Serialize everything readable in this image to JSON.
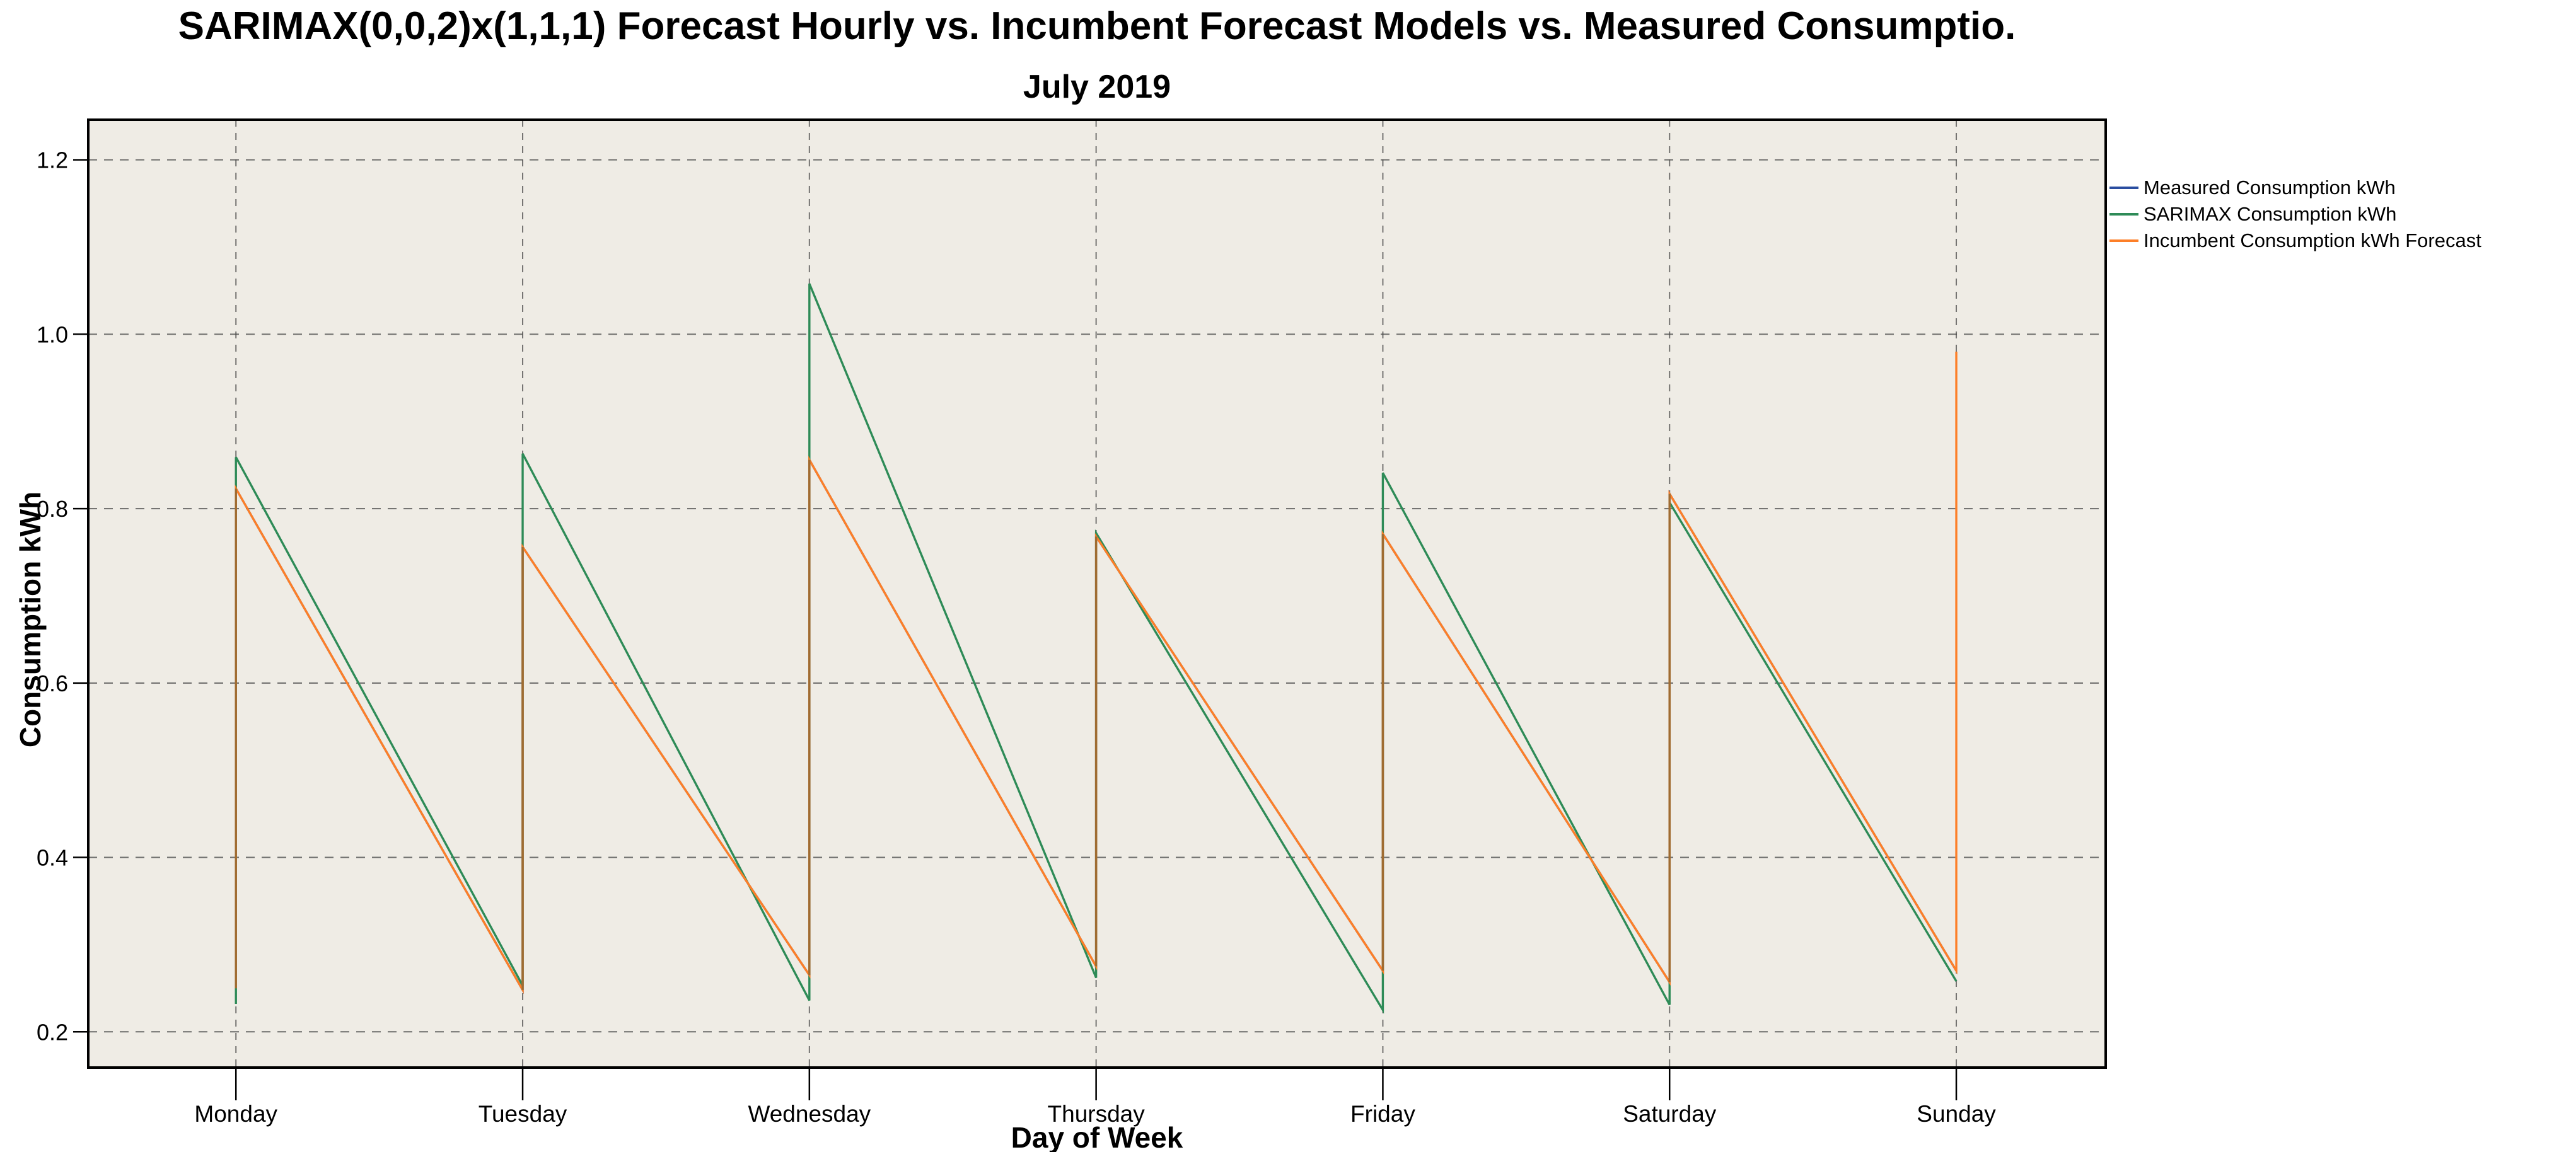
{
  "chart": {
    "title": "SARIMAX(0,0,2)x(1,1,1) Forecast Hourly vs. Incumbent Forecast Models vs. Measured Consumptio.",
    "subtitle": "July 2019",
    "xlabel": "Day of Week",
    "ylabel": "Consumption kWh"
  },
  "chart_data": {
    "type": "line",
    "categories": [
      "Monday",
      "Tuesday",
      "Wednesday",
      "Thursday",
      "Friday",
      "Saturday",
      "Sunday"
    ],
    "y_tick_labels": [
      "0.2",
      "0.4",
      "0.6",
      "0.8",
      "1.0",
      "1.2"
    ],
    "y_ticks": [
      0.2,
      0.4,
      0.6,
      0.8,
      1.0,
      1.2
    ],
    "ylim": [
      0.159,
      1.246
    ],
    "xlim": [
      -0.515,
      6.521
    ],
    "grid": "dashed-both-axes",
    "legend_position": "outside-right-top",
    "series": [
      {
        "name": "Measured Consumption kWh",
        "color": "#2a4da0",
        "points": [
          [
            0,
            0.25
          ],
          [
            0,
            0.823
          ],
          [
            1,
            0.248
          ],
          [
            1,
            0.756
          ],
          [
            2,
            0.265
          ],
          [
            2,
            0.856
          ],
          [
            3,
            0.275
          ],
          [
            3,
            0.768
          ],
          [
            4,
            0.27
          ],
          [
            4,
            0.771
          ],
          [
            5,
            0.257
          ],
          [
            5,
            0.817
          ],
          [
            6,
            0.27
          ]
        ]
      },
      {
        "name": "SARIMAX Consumption kWh",
        "color": "#2e8b57",
        "points": [
          [
            0,
            0.232
          ],
          [
            0,
            0.859
          ],
          [
            1,
            0.253
          ],
          [
            1,
            0.863
          ],
          [
            2,
            0.236
          ],
          [
            2,
            1.058
          ],
          [
            3,
            0.262
          ],
          [
            3,
            0.772
          ],
          [
            4,
            0.225
          ],
          [
            4,
            0.841
          ],
          [
            5,
            0.231
          ],
          [
            5,
            0.807
          ],
          [
            6,
            0.258
          ]
        ]
      },
      {
        "name": "Incumbent Consumption kWh Forecast",
        "color": "#fd7f28",
        "points": [
          [
            0,
            0.25
          ],
          [
            0,
            0.823
          ],
          [
            1,
            0.248
          ],
          [
            1,
            0.756
          ],
          [
            2,
            0.265
          ],
          [
            2,
            0.856
          ],
          [
            3,
            0.275
          ],
          [
            3,
            0.768
          ],
          [
            4,
            0.27
          ],
          [
            4,
            0.771
          ],
          [
            5,
            0.257
          ],
          [
            5,
            0.817
          ],
          [
            6,
            0.27
          ],
          [
            6,
            0.98
          ]
        ]
      }
    ]
  },
  "style": {
    "plot_bg": "#efece5",
    "grid_color": "#4b4b4b",
    "border_color": "#000000",
    "tick_color": "#000000",
    "spike_overlay_color": "#9b6c33",
    "spike_overlay_days": [
      0,
      1,
      2,
      3,
      4,
      5
    ]
  }
}
